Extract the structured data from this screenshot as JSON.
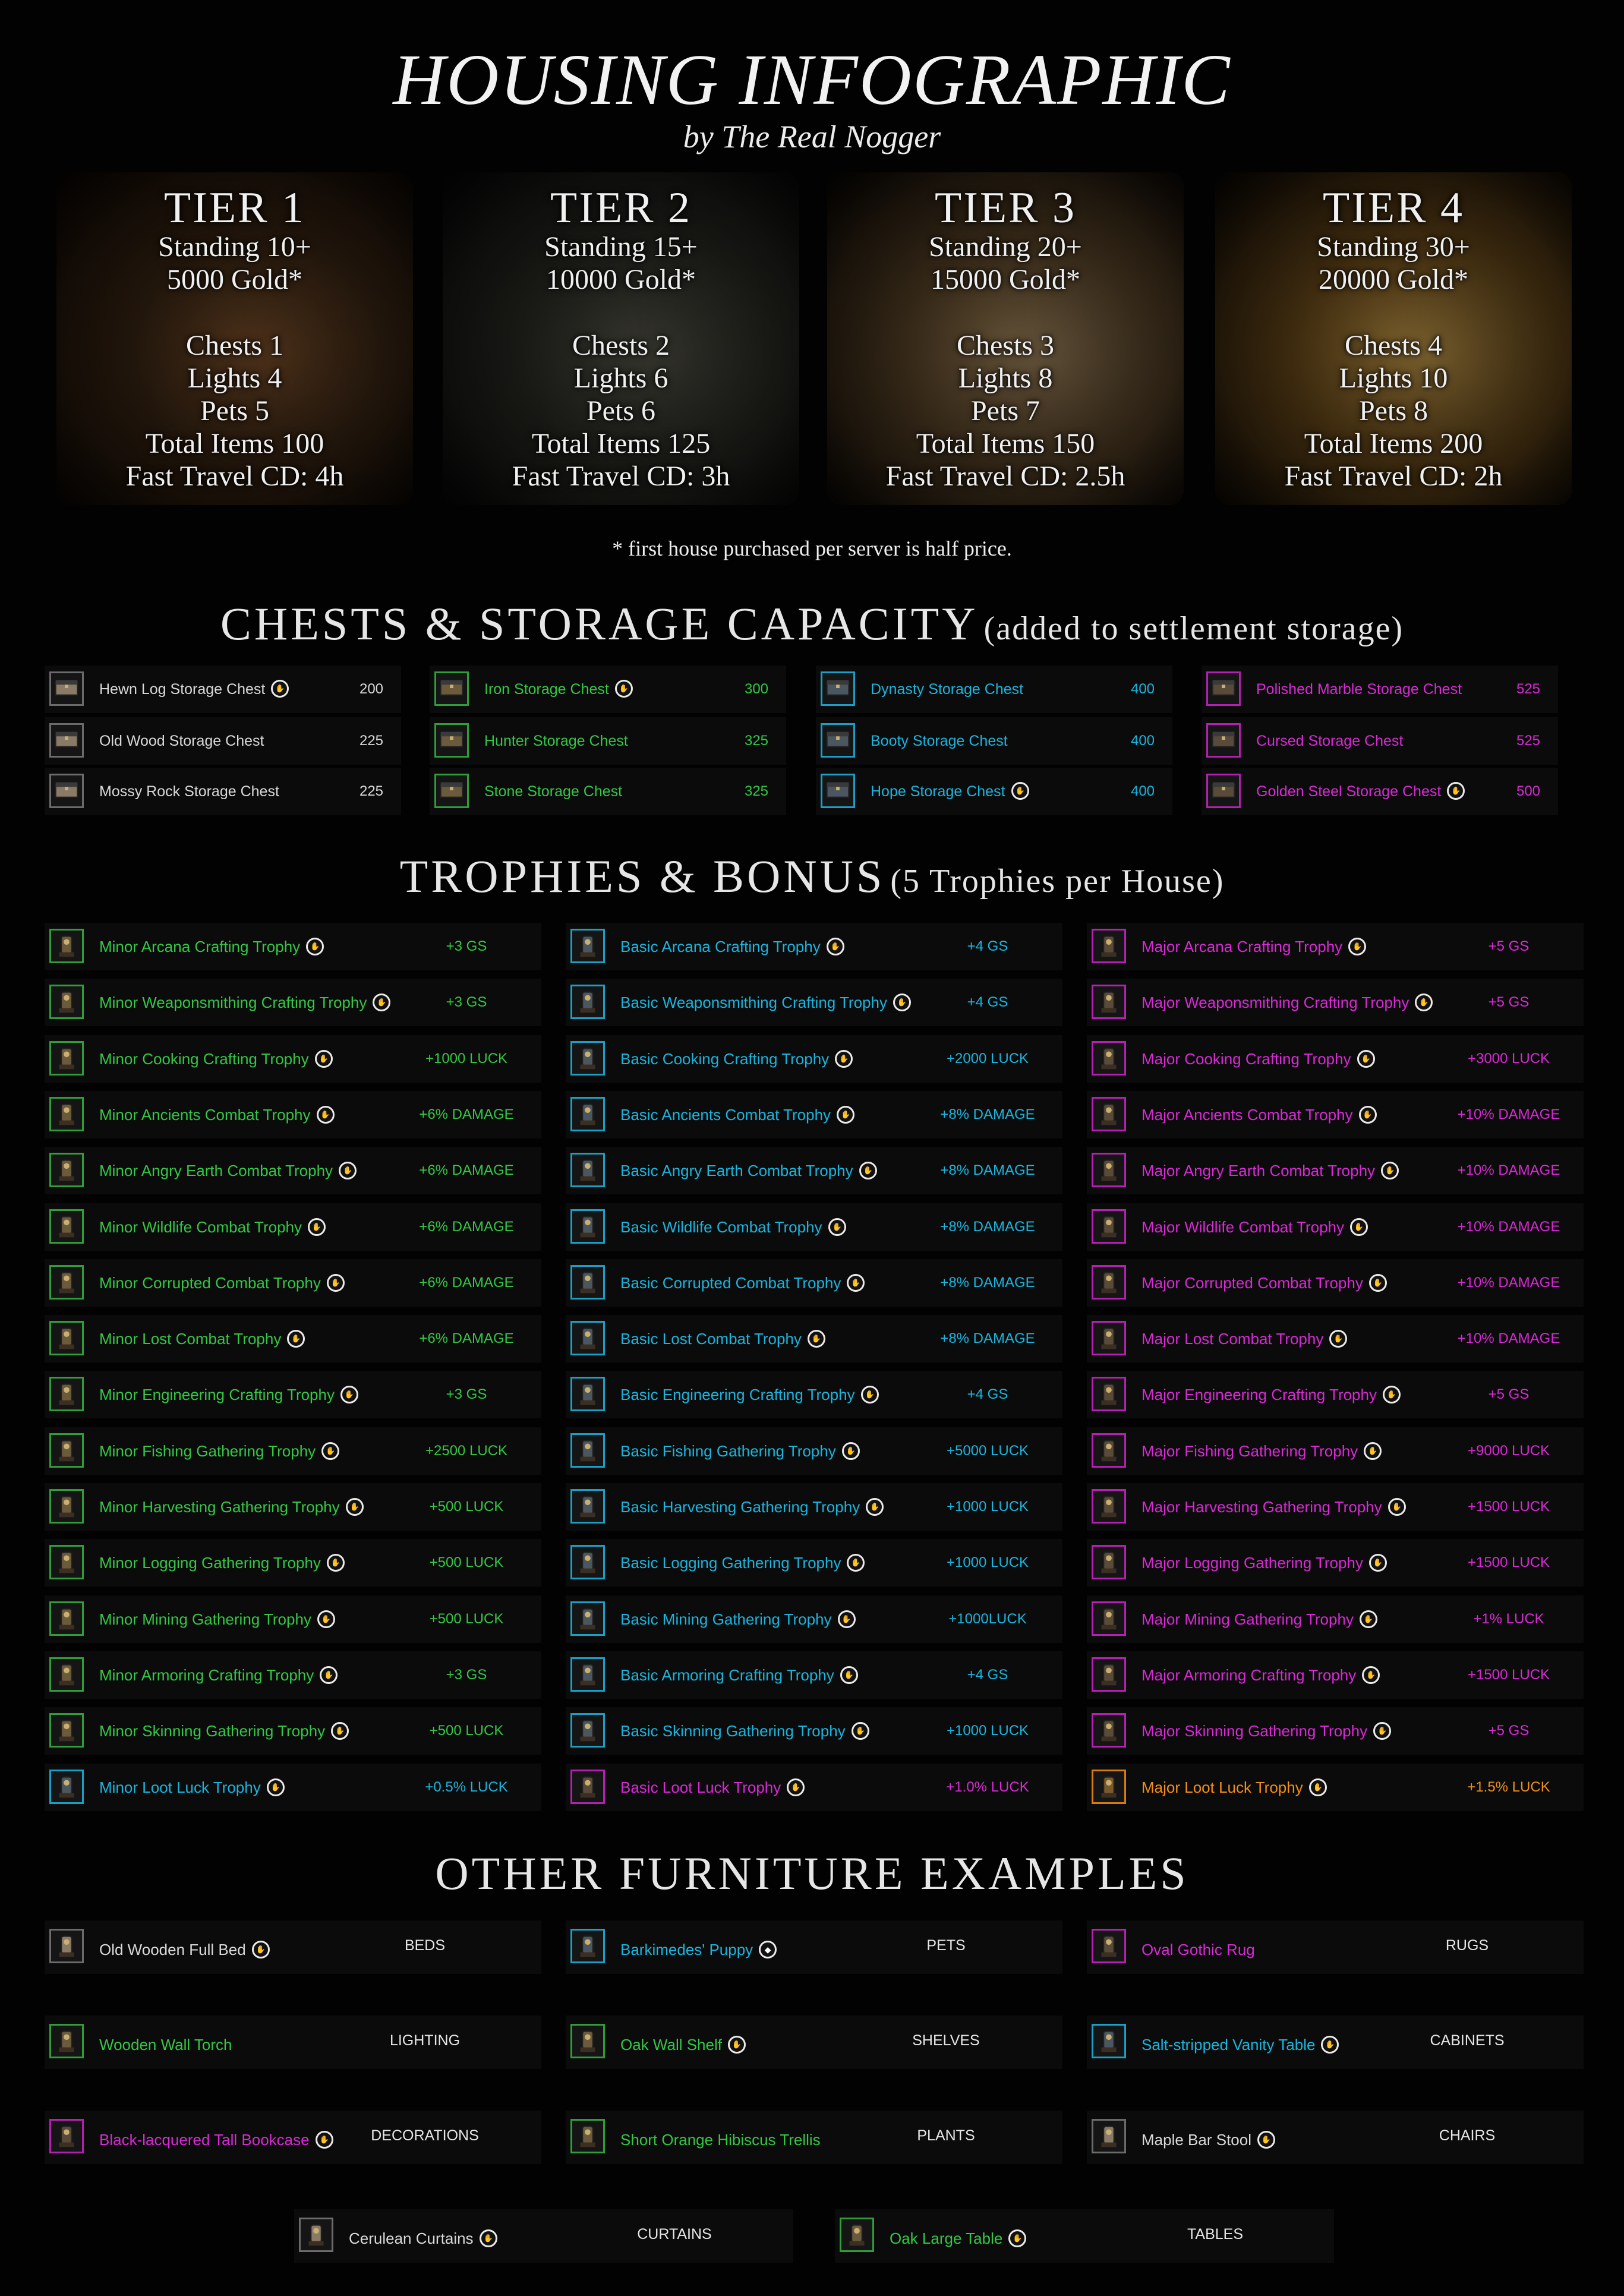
{
  "header": {
    "title": "HOUSING INFOGRAPHIC",
    "subtitle": "by The Real Nogger"
  },
  "tiers": [
    {
      "name": "TIER 1",
      "standing": "Standing 10+",
      "gold": "5000 Gold*",
      "chests": "Chests 1",
      "lights": "Lights 4",
      "pets": "Pets 5",
      "total": "Total Items 100",
      "travel": "Fast Travel CD: 4h"
    },
    {
      "name": "TIER 2",
      "standing": "Standing 15+",
      "gold": "10000 Gold*",
      "chests": "Chests 2",
      "lights": "Lights 6",
      "pets": "Pets 6",
      "total": "Total Items 125",
      "travel": "Fast Travel CD: 3h"
    },
    {
      "name": "TIER 3",
      "standing": "Standing 20+",
      "gold": "15000 Gold*",
      "chests": "Chests 3",
      "lights": "Lights 8",
      "pets": "Pets 7",
      "total": "Total Items 150",
      "travel": "Fast Travel CD: 2.5h"
    },
    {
      "name": "TIER 4",
      "standing": "Standing 30+",
      "gold": "20000 Gold*",
      "chests": "Chests 4",
      "lights": "Lights 10",
      "pets": "Pets 8",
      "total": "Total Items 200",
      "travel": "Fast Travel CD: 2h"
    }
  ],
  "note": "* first house purchased per server is half price.",
  "chests_section": {
    "title": "CHESTS & STORAGE CAPACITY",
    "subtitle": "(added to settlement storage)",
    "columns": [
      {
        "color": "white",
        "items": [
          {
            "name": "Hewn Log Storage Chest",
            "badge": true,
            "value": "200"
          },
          {
            "name": "Old Wood Storage Chest",
            "badge": false,
            "value": "225"
          },
          {
            "name": "Mossy Rock Storage Chest",
            "badge": false,
            "value": "225"
          }
        ]
      },
      {
        "color": "green",
        "items": [
          {
            "name": "Iron Storage Chest",
            "badge": true,
            "value": "300"
          },
          {
            "name": "Hunter Storage Chest",
            "badge": false,
            "value": "325"
          },
          {
            "name": "Stone Storage Chest",
            "badge": false,
            "value": "325"
          }
        ]
      },
      {
        "color": "blue",
        "items": [
          {
            "name": "Dynasty Storage Chest",
            "badge": false,
            "value": "400"
          },
          {
            "name": "Booty Storage Chest",
            "badge": false,
            "value": "400"
          },
          {
            "name": "Hope Storage Chest",
            "badge": true,
            "value": "400"
          }
        ]
      },
      {
        "color": "pink",
        "items": [
          {
            "name": "Polished Marble Storage Chest",
            "badge": false,
            "value": "525"
          },
          {
            "name": "Cursed Storage Chest",
            "badge": false,
            "value": "525"
          },
          {
            "name": "Golden Steel Storage Chest",
            "badge": true,
            "value": "500"
          }
        ]
      }
    ]
  },
  "trophies_section": {
    "title": "TROPHIES & BONUS",
    "subtitle": "(5 Trophies per House)",
    "columns": [
      {
        "color": "green",
        "items": [
          {
            "name": "Minor Arcana Crafting Trophy",
            "value": "+3 GS"
          },
          {
            "name": "Minor Weaponsmithing Crafting Trophy",
            "value": "+3 GS"
          },
          {
            "name": "Minor Cooking Crafting Trophy",
            "value": "+1000 LUCK"
          },
          {
            "name": "Minor Ancients Combat Trophy",
            "value": "+6% DAMAGE"
          },
          {
            "name": "Minor Angry Earth Combat Trophy",
            "value": "+6% DAMAGE"
          },
          {
            "name": "Minor Wildlife Combat Trophy",
            "value": "+6% DAMAGE"
          },
          {
            "name": "Minor Corrupted Combat Trophy",
            "value": "+6% DAMAGE"
          },
          {
            "name": "Minor Lost Combat Trophy",
            "value": "+6% DAMAGE"
          },
          {
            "name": "Minor Engineering Crafting Trophy",
            "value": "+3 GS"
          },
          {
            "name": "Minor Fishing Gathering Trophy",
            "value": "+2500 LUCK"
          },
          {
            "name": "Minor Harvesting Gathering Trophy",
            "value": "+500 LUCK"
          },
          {
            "name": "Minor Logging Gathering Trophy",
            "value": "+500 LUCK"
          },
          {
            "name": "Minor Mining Gathering Trophy",
            "value": "+500 LUCK"
          },
          {
            "name": "Minor Armoring Crafting Trophy",
            "value": "+3 GS"
          },
          {
            "name": "Minor Skinning Gathering Trophy",
            "value": "+500 LUCK"
          },
          {
            "name": "Minor Loot Luck Trophy",
            "value": "+0.5% LUCK",
            "color": "blue"
          }
        ]
      },
      {
        "color": "blue",
        "items": [
          {
            "name": "Basic Arcana Crafting Trophy",
            "value": "+4 GS"
          },
          {
            "name": "Basic Weaponsmithing Crafting Trophy",
            "value": "+4 GS"
          },
          {
            "name": "Basic Cooking Crafting Trophy",
            "value": "+2000 LUCK"
          },
          {
            "name": "Basic Ancients Combat Trophy",
            "value": "+8% DAMAGE"
          },
          {
            "name": "Basic Angry Earth Combat Trophy",
            "value": "+8% DAMAGE"
          },
          {
            "name": "Basic Wildlife Combat Trophy",
            "value": "+8% DAMAGE"
          },
          {
            "name": "Basic Corrupted Combat Trophy",
            "value": "+8% DAMAGE"
          },
          {
            "name": "Basic Lost Combat Trophy",
            "value": "+8% DAMAGE"
          },
          {
            "name": "Basic Engineering Crafting Trophy",
            "value": "+4 GS"
          },
          {
            "name": "Basic Fishing Gathering Trophy",
            "value": "+5000 LUCK"
          },
          {
            "name": "Basic Harvesting Gathering Trophy",
            "value": "+1000 LUCK"
          },
          {
            "name": "Basic Logging Gathering Trophy",
            "value": "+1000 LUCK"
          },
          {
            "name": "Basic Mining Gathering Trophy",
            "value": "+1000LUCK"
          },
          {
            "name": "Basic Armoring Crafting Trophy",
            "value": "+4 GS"
          },
          {
            "name": "Basic Skinning Gathering Trophy",
            "value": "+1000 LUCK"
          },
          {
            "name": "Basic Loot Luck Trophy",
            "value": "+1.0% LUCK",
            "color": "pink"
          }
        ]
      },
      {
        "color": "pink",
        "items": [
          {
            "name": "Major Arcana Crafting Trophy",
            "value": "+5 GS"
          },
          {
            "name": "Major Weaponsmithing Crafting Trophy",
            "value": "+5 GS"
          },
          {
            "name": "Major Cooking Crafting Trophy",
            "value": "+3000 LUCK"
          },
          {
            "name": "Major Ancients Combat Trophy",
            "value": "+10% DAMAGE"
          },
          {
            "name": "Major Angry Earth Combat Trophy",
            "value": "+10% DAMAGE"
          },
          {
            "name": "Major Wildlife Combat Trophy",
            "value": "+10% DAMAGE"
          },
          {
            "name": "Major Corrupted Combat Trophy",
            "value": "+10% DAMAGE"
          },
          {
            "name": "Major Lost Combat Trophy",
            "value": "+10% DAMAGE"
          },
          {
            "name": "Major Engineering Crafting Trophy",
            "value": "+5 GS"
          },
          {
            "name": "Major Fishing Gathering Trophy",
            "value": "+9000 LUCK"
          },
          {
            "name": "Major Harvesting Gathering Trophy",
            "value": "+1500 LUCK"
          },
          {
            "name": "Major Logging Gathering Trophy",
            "value": "+1500 LUCK"
          },
          {
            "name": "Major Mining Gathering Trophy",
            "value": "+1% LUCK"
          },
          {
            "name": "Major Armoring Crafting Trophy",
            "value": "+1500 LUCK"
          },
          {
            "name": "Major Skinning Gathering Trophy",
            "value": "+5 GS"
          },
          {
            "name": "Major Loot Luck Trophy",
            "value": "+1.5% LUCK",
            "color": "orange"
          }
        ]
      }
    ]
  },
  "furniture_section": {
    "title": "OTHER FURNITURE EXAMPLES",
    "rows": [
      [
        {
          "name": "Old Wooden Full Bed",
          "color": "white",
          "badge": "hand",
          "category": "BEDS"
        },
        {
          "name": "Barkimedes' Puppy",
          "color": "blue",
          "badge": "diamond",
          "category": "PETS"
        },
        {
          "name": "Oval Gothic Rug",
          "color": "pink",
          "badge": "none",
          "category": "RUGS"
        }
      ],
      [
        {
          "name": "Wooden Wall Torch",
          "color": "green",
          "badge": "none",
          "category": "LIGHTING"
        },
        {
          "name": "Oak Wall Shelf",
          "color": "green",
          "badge": "hand",
          "category": "SHELVES"
        },
        {
          "name": "Salt-stripped Vanity Table",
          "color": "blue",
          "badge": "hand",
          "category": "CABINETS"
        }
      ],
      [
        {
          "name": "Black-lacquered Tall Bookcase",
          "color": "pink",
          "badge": "hand",
          "category": "DECORATIONS"
        },
        {
          "name": "Short Orange Hibiscus Trellis",
          "color": "green",
          "badge": "none",
          "category": "PLANTS"
        },
        {
          "name": "Maple Bar Stool",
          "color": "white",
          "badge": "hand",
          "category": "CHAIRS"
        }
      ],
      [
        {
          "name": "Cerulean Curtains",
          "color": "white",
          "badge": "hand",
          "category": "CURTAINS"
        },
        {
          "name": "Oak Large Table",
          "color": "green",
          "badge": "hand",
          "category": "TABLES"
        }
      ]
    ]
  },
  "colors": {
    "white": "#d9d9d9",
    "green": "#34c746",
    "blue": "#1ab5de",
    "pink": "#d82ad5",
    "orange": "#f28f18",
    "background": "#020202"
  },
  "icons": {
    "badge": "craftable-hand-icon",
    "badge_alt": "diamond-icon"
  }
}
